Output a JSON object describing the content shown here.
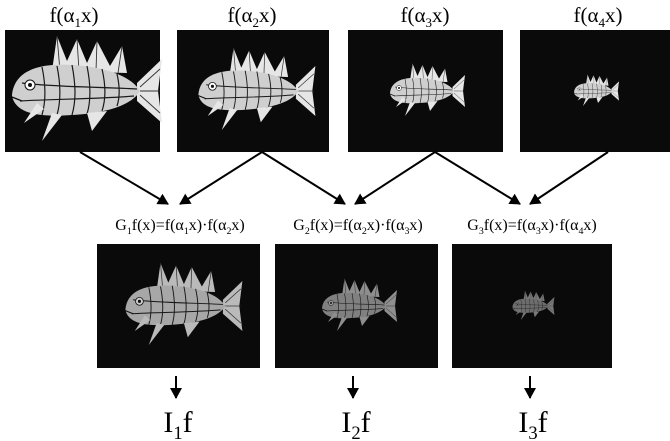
{
  "top_row": [
    {
      "id": "a1",
      "prefix": "f(α",
      "sub": "1",
      "suffix": "x)",
      "scale": 1.0
    },
    {
      "id": "a2",
      "prefix": "f(α",
      "sub": "2",
      "suffix": "x)",
      "scale": 0.78
    },
    {
      "id": "a3",
      "prefix": "f(α",
      "sub": "3",
      "suffix": "x)",
      "scale": 0.5
    },
    {
      "id": "a4",
      "prefix": "f(α",
      "sub": "4",
      "suffix": "x)",
      "scale": 0.3
    }
  ],
  "middle_row": [
    {
      "id": "g1",
      "g_sub": "1",
      "i": "1",
      "j": "2",
      "scale": 0.78,
      "contrast": 0.8
    },
    {
      "id": "g2",
      "g_sub": "2",
      "i": "2",
      "j": "3",
      "scale": 0.5,
      "contrast": 0.6
    },
    {
      "id": "g3",
      "g_sub": "3",
      "i": "3",
      "j": "4",
      "scale": 0.28,
      "contrast": 0.5
    }
  ],
  "bottom_row": [
    {
      "id": "i1",
      "letter": "I",
      "sub": "1",
      "suffix": "f"
    },
    {
      "id": "i2",
      "letter": "I",
      "sub": "2",
      "suffix": "f"
    },
    {
      "id": "i3",
      "letter": "I",
      "sub": "3",
      "suffix": "f"
    }
  ],
  "formula": {
    "g": "G",
    "lhs_suffix": "f(x)=f(α",
    "x_close": "x)",
    "dot": "·",
    "f_open": "f(α"
  }
}
